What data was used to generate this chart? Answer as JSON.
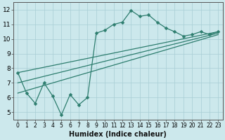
{
  "xlabel": "Humidex (Indice chaleur)",
  "xlim": [
    -0.5,
    23.5
  ],
  "ylim": [
    4.5,
    12.5
  ],
  "yticks": [
    5,
    6,
    7,
    8,
    9,
    10,
    11,
    12
  ],
  "xticks": [
    0,
    1,
    2,
    3,
    4,
    5,
    6,
    7,
    8,
    9,
    10,
    11,
    12,
    13,
    14,
    15,
    16,
    17,
    18,
    19,
    20,
    21,
    22,
    23
  ],
  "bg_color": "#cce8ec",
  "line_color": "#2d7d6e",
  "main_line": {
    "x": [
      0,
      1,
      2,
      3,
      4,
      5,
      6,
      7,
      8,
      9,
      10,
      11,
      12,
      13,
      14,
      15,
      16,
      17,
      18,
      19,
      20,
      21,
      22,
      23
    ],
    "y": [
      7.7,
      6.3,
      5.6,
      7.0,
      6.1,
      4.8,
      6.2,
      5.5,
      6.0,
      10.4,
      10.6,
      11.0,
      11.15,
      11.95,
      11.55,
      11.65,
      11.15,
      10.75,
      10.5,
      10.2,
      10.3,
      10.5,
      10.3,
      10.5
    ]
  },
  "reg_lines": [
    {
      "x": [
        0,
        23
      ],
      "y": [
        7.7,
        10.5
      ]
    },
    {
      "x": [
        0,
        23
      ],
      "y": [
        7.0,
        10.4
      ]
    },
    {
      "x": [
        0,
        23
      ],
      "y": [
        6.3,
        10.3
      ]
    }
  ]
}
